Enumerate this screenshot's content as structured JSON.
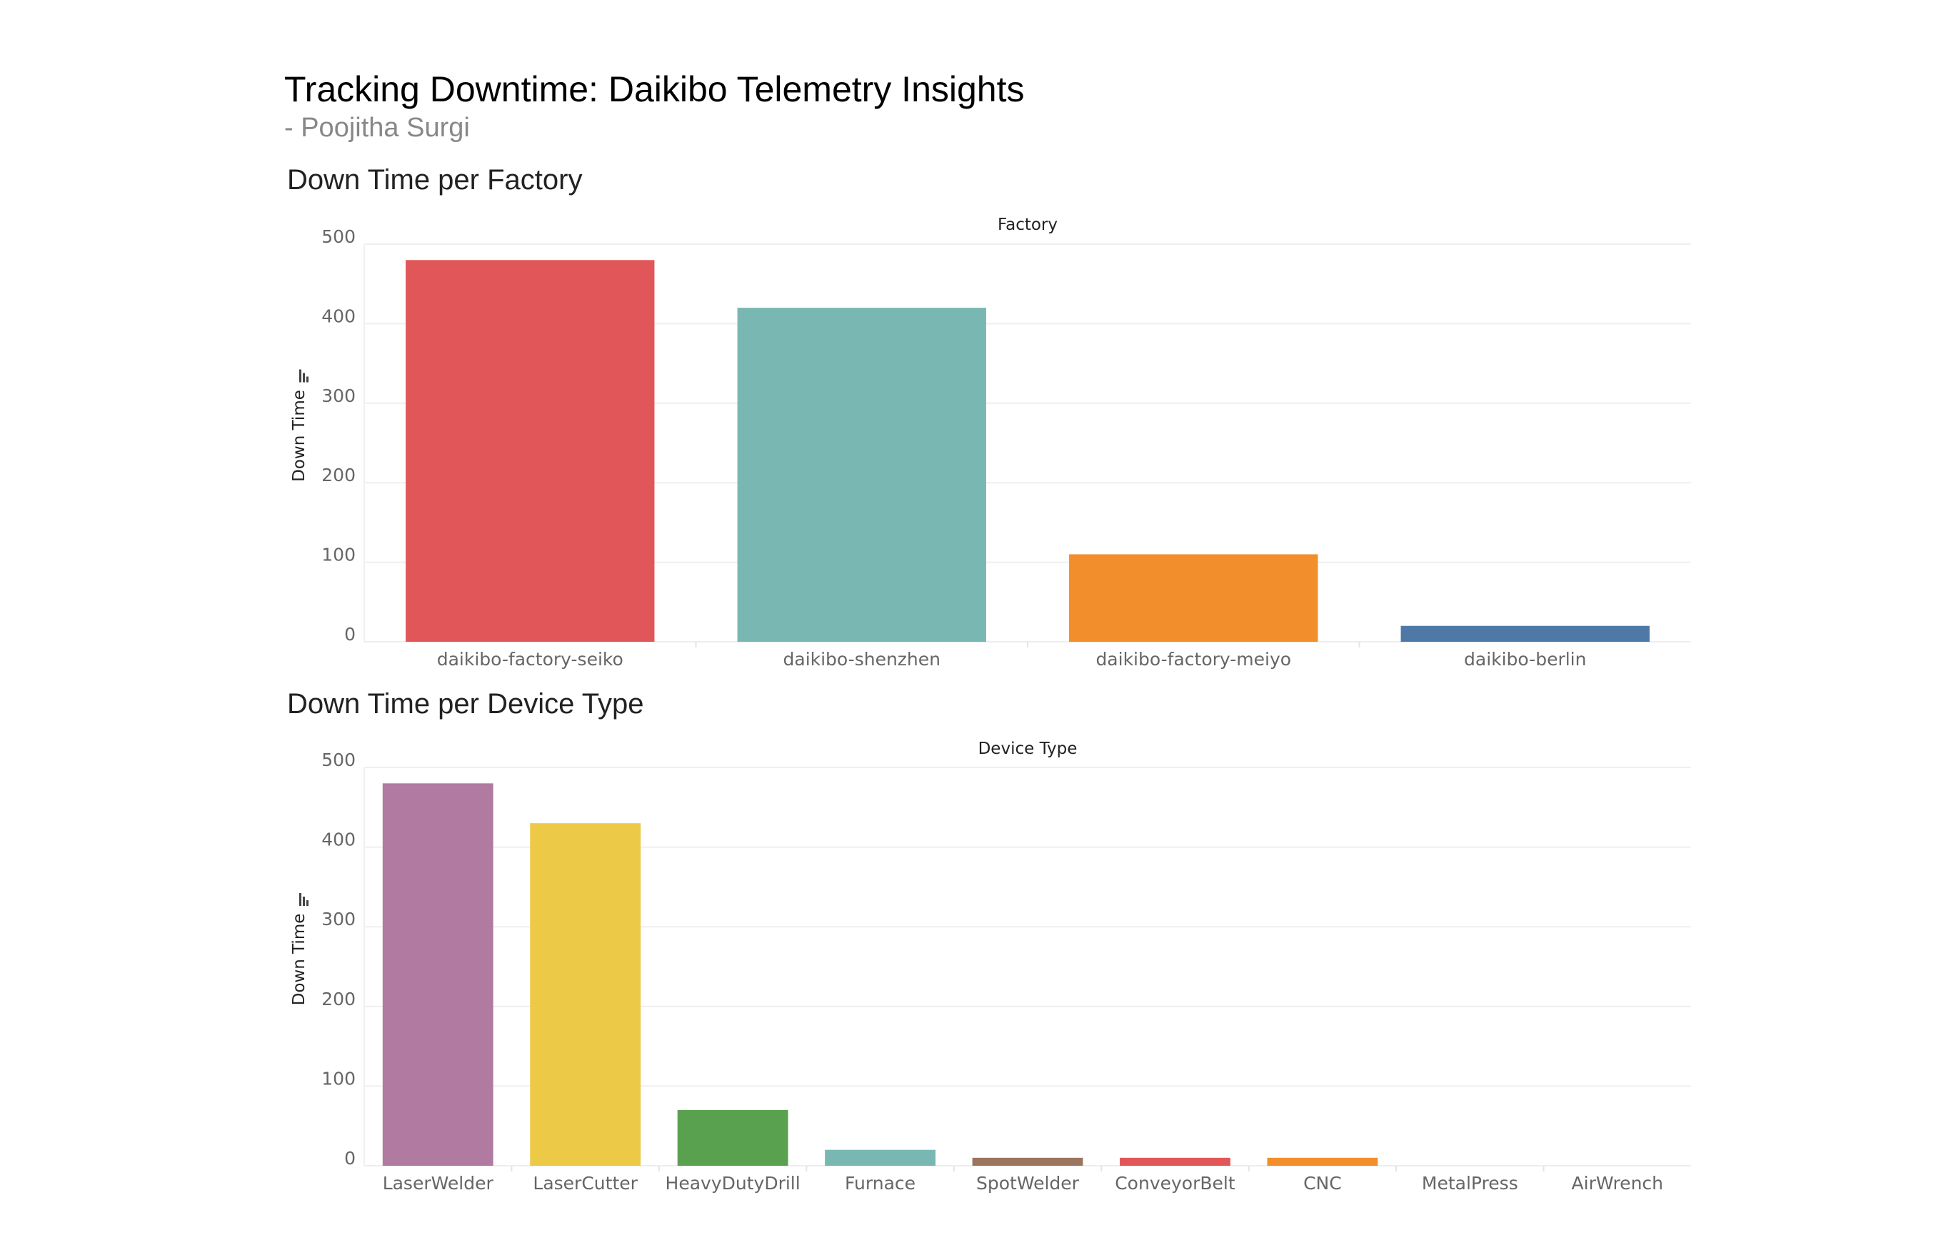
{
  "dashboard": {
    "title": "Tracking Downtime: Daikibo Telemetry Insights",
    "author": "- Poojitha Surgi"
  },
  "chart_data": [
    {
      "type": "bar",
      "title": "Down Time per Factory",
      "xlabel": "Factory",
      "ylabel": "Down Time",
      "ylim": [
        0,
        500
      ],
      "yticks": [
        0,
        100,
        200,
        300,
        400,
        500
      ],
      "grid": true,
      "categories": [
        "daikibo-factory-seiko",
        "daikibo-shenzhen",
        "daikibo-factory-meiyo",
        "daikibo-berlin"
      ],
      "values": [
        480,
        420,
        110,
        20
      ],
      "colors": [
        "#e15759",
        "#79b7b2",
        "#f28e2b",
        "#4e79a7"
      ]
    },
    {
      "type": "bar",
      "title": "Down Time per Device Type",
      "xlabel": "Device Type",
      "ylabel": "Down Time",
      "ylim": [
        0,
        500
      ],
      "yticks": [
        0,
        100,
        200,
        300,
        400,
        500
      ],
      "grid": true,
      "categories": [
        "LaserWelder",
        "LaserCutter",
        "HeavyDutyDrill",
        "Furnace",
        "SpotWelder",
        "ConveyorBelt",
        "CNC",
        "MetalPress",
        "AirWrench"
      ],
      "values": [
        480,
        430,
        70,
        20,
        10,
        10,
        10,
        0,
        0
      ],
      "colors": [
        "#b07aa1",
        "#edc948",
        "#59a14f",
        "#79b7b2",
        "#9c755f",
        "#e15759",
        "#f28e2b",
        "#bab0ac",
        "#76b7b2"
      ]
    }
  ]
}
